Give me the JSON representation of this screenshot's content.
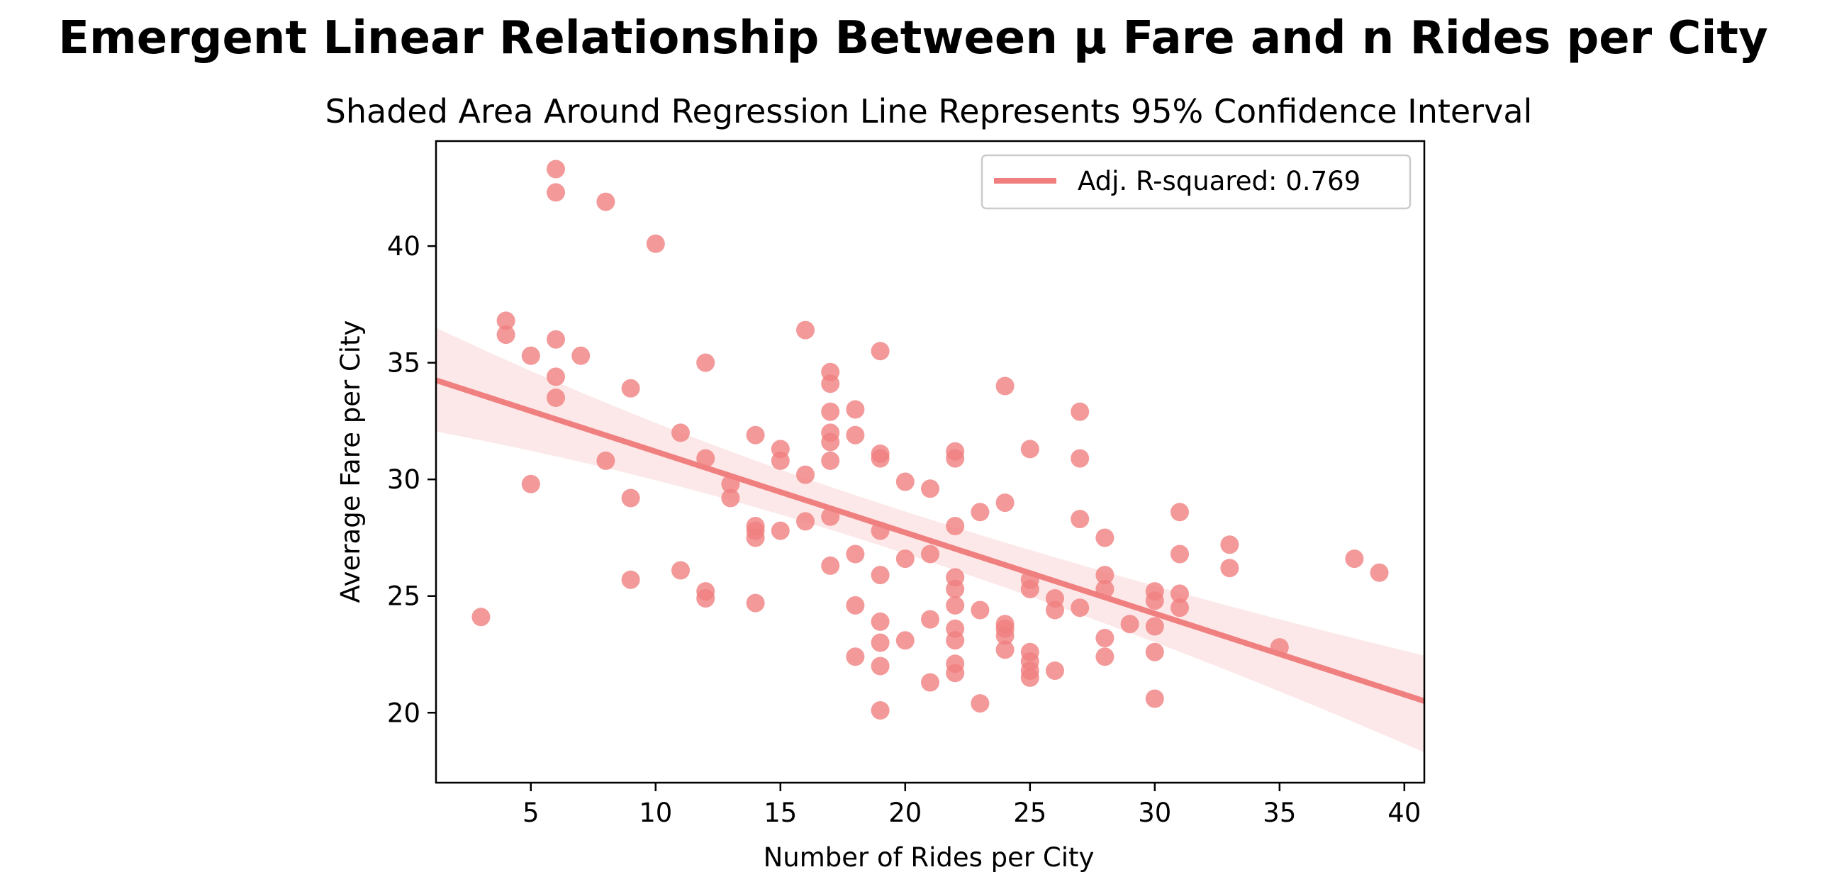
{
  "chart_data": {
    "type": "scatter",
    "title": "Emergent Linear Relationship Between µ Fare and n Rides per City",
    "subtitle": "Shaded Area Around Regression Line Represents 95% Confidence Interval",
    "xlabel": "Number of Rides per City",
    "ylabel": "Average Fare per City",
    "xlim": [
      1.2,
      40.8
    ],
    "ylim": [
      17.0,
      44.5
    ],
    "xticks": [
      5,
      10,
      15,
      20,
      25,
      30,
      35,
      40
    ],
    "yticks": [
      20,
      25,
      30,
      35,
      40
    ],
    "grid": false,
    "legend_position": "top-right",
    "color": "#f08080",
    "legend": {
      "label": "Adj. R-squared: 0.769"
    },
    "regression": {
      "x": [
        1.2,
        40.8
      ],
      "y": [
        34.25,
        20.5
      ],
      "ci_upper": [
        36.5,
        22.45
      ],
      "ci_lower": [
        32.05,
        18.3
      ]
    },
    "points": [
      [
        3,
        24.1
      ],
      [
        4,
        36.8
      ],
      [
        4,
        36.2
      ],
      [
        5,
        35.3
      ],
      [
        5,
        29.8
      ],
      [
        6,
        43.3
      ],
      [
        6,
        42.3
      ],
      [
        6,
        36.0
      ],
      [
        6,
        34.4
      ],
      [
        6,
        33.5
      ],
      [
        7,
        35.3
      ],
      [
        8,
        41.9
      ],
      [
        8,
        30.8
      ],
      [
        9,
        33.9
      ],
      [
        9,
        29.2
      ],
      [
        9,
        25.7
      ],
      [
        10,
        40.1
      ],
      [
        11,
        32.0
      ],
      [
        11,
        26.1
      ],
      [
        12,
        35.0
      ],
      [
        12,
        30.9
      ],
      [
        12,
        25.2
      ],
      [
        12,
        24.9
      ],
      [
        13,
        29.8
      ],
      [
        13,
        29.2
      ],
      [
        14,
        31.9
      ],
      [
        14,
        28.0
      ],
      [
        14,
        27.8
      ],
      [
        14,
        27.5
      ],
      [
        14,
        24.7
      ],
      [
        15,
        31.3
      ],
      [
        15,
        30.8
      ],
      [
        15,
        27.8
      ],
      [
        16,
        36.4
      ],
      [
        16,
        30.2
      ],
      [
        16,
        28.2
      ],
      [
        17,
        34.6
      ],
      [
        17,
        34.1
      ],
      [
        17,
        32.9
      ],
      [
        17,
        32.0
      ],
      [
        17,
        31.6
      ],
      [
        17,
        30.8
      ],
      [
        17,
        28.4
      ],
      [
        17,
        26.3
      ],
      [
        18,
        33.0
      ],
      [
        18,
        31.9
      ],
      [
        18,
        26.8
      ],
      [
        18,
        24.6
      ],
      [
        18,
        22.4
      ],
      [
        19,
        35.5
      ],
      [
        19,
        31.1
      ],
      [
        19,
        30.9
      ],
      [
        19,
        27.8
      ],
      [
        19,
        25.9
      ],
      [
        19,
        23.9
      ],
      [
        19,
        23.0
      ],
      [
        19,
        22.0
      ],
      [
        19,
        20.1
      ],
      [
        20,
        29.9
      ],
      [
        20,
        26.6
      ],
      [
        20,
        23.1
      ],
      [
        21,
        29.6
      ],
      [
        21,
        26.8
      ],
      [
        21,
        24.0
      ],
      [
        21,
        21.3
      ],
      [
        22,
        31.2
      ],
      [
        22,
        30.9
      ],
      [
        22,
        28.0
      ],
      [
        22,
        25.8
      ],
      [
        22,
        25.3
      ],
      [
        22,
        24.6
      ],
      [
        22,
        23.6
      ],
      [
        22,
        23.1
      ],
      [
        22,
        22.1
      ],
      [
        22,
        21.7
      ],
      [
        23,
        28.6
      ],
      [
        23,
        24.4
      ],
      [
        23,
        20.4
      ],
      [
        24,
        34.0
      ],
      [
        24,
        29.0
      ],
      [
        24,
        23.8
      ],
      [
        24,
        23.6
      ],
      [
        24,
        23.3
      ],
      [
        24,
        22.7
      ],
      [
        25,
        31.3
      ],
      [
        25,
        25.7
      ],
      [
        25,
        25.3
      ],
      [
        25,
        22.6
      ],
      [
        25,
        22.2
      ],
      [
        25,
        21.8
      ],
      [
        25,
        21.5
      ],
      [
        26,
        24.9
      ],
      [
        26,
        24.4
      ],
      [
        26,
        21.8
      ],
      [
        27,
        32.9
      ],
      [
        27,
        30.9
      ],
      [
        27,
        28.3
      ],
      [
        27,
        24.5
      ],
      [
        28,
        27.5
      ],
      [
        28,
        25.9
      ],
      [
        28,
        25.3
      ],
      [
        28,
        23.2
      ],
      [
        28,
        22.4
      ],
      [
        29,
        23.8
      ],
      [
        30,
        25.2
      ],
      [
        30,
        24.8
      ],
      [
        30,
        23.7
      ],
      [
        30,
        22.6
      ],
      [
        30,
        20.6
      ],
      [
        31,
        28.6
      ],
      [
        31,
        26.8
      ],
      [
        31,
        25.1
      ],
      [
        31,
        24.5
      ],
      [
        33,
        27.2
      ],
      [
        33,
        26.2
      ],
      [
        35,
        22.8
      ],
      [
        38,
        26.6
      ],
      [
        39,
        26.0
      ]
    ]
  }
}
